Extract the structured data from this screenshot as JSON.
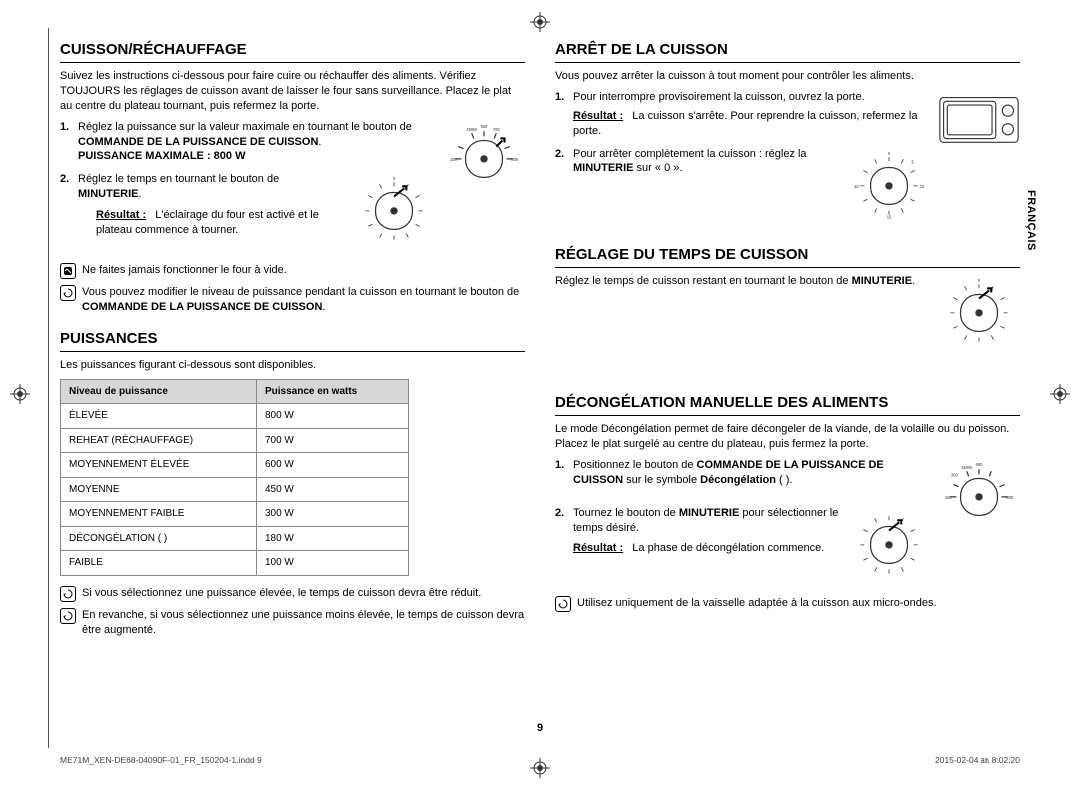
{
  "page_number": "9",
  "side_tab": "FRANÇAIS",
  "footer": {
    "file": "ME71M_XEN-DE68-04090F-01_FR_150204-1.indd   9",
    "timestamp": "2015-02-04   ㏂ 8:02:20"
  },
  "left": {
    "s1": {
      "title": "CUISSON/RÉCHAUFFAGE",
      "intro": "Suivez les instructions ci-dessous pour faire cuire ou réchauffer des aliments. Vérifiez TOUJOURS les réglages de cuisson avant de laisser le four sans surveillance. Placez le plat au centre du plateau tournant, puis refermez la porte.",
      "step1a": "Réglez la puissance sur la valeur maximale en tournant le bouton de ",
      "step1b": "COMMANDE DE LA PUISSANCE DE CUISSON",
      "step1c": ".",
      "step1d": "PUISSANCE MAXIMALE : 800 W",
      "step2a": "Réglez le temps en tournant le bouton de ",
      "step2b": "MINUTERIE",
      "step2c": ".",
      "result_label": "Résultat :",
      "result_text": "L'éclairage du four est activé et le plateau commence à tourner.",
      "note1": "Ne faites jamais fonctionner le four à vide.",
      "note2a": "Vous pouvez modifier le niveau de puissance pendant la cuisson en tournant le bouton de ",
      "note2b": "COMMANDE DE LA PUISSANCE DE CUISSON",
      "note2c": "."
    },
    "s2": {
      "title": "PUISSANCES",
      "intro": "Les puissances figurant ci-dessous sont disponibles.",
      "col1": "Niveau de puissance",
      "col2": "Puissance en watts",
      "rows": [
        [
          "ÉLEVÉE",
          "800 W"
        ],
        [
          "REHEAT (RÉCHAUFFAGE)",
          "700 W"
        ],
        [
          "MOYENNEMENT ÉLEVÉE",
          "600 W"
        ],
        [
          "MOYENNE",
          "450 W"
        ],
        [
          "MOYENNEMENT FAIBLE",
          "300 W"
        ],
        [
          "DÉCONGÉLATION (    )",
          "180 W"
        ],
        [
          "FAIBLE",
          "100 W"
        ]
      ],
      "note1": "Si vous sélectionnez une puissance élevée, le temps de cuisson devra être réduit.",
      "note2": "En revanche, si vous sélectionnez une puissance moins élevée, le temps de cuisson devra être augmenté."
    }
  },
  "right": {
    "s1": {
      "title": "ARRÊT DE LA CUISSON",
      "intro": "Vous pouvez arrêter la cuisson à tout moment pour contrôler les aliments.",
      "step1": "Pour interrompre provisoirement la cuisson, ouvrez la porte.",
      "result_label": "Résultat :",
      "result_text": "La cuisson s'arrête. Pour reprendre la cuisson, refermez la porte.",
      "step2a": "Pour arrêter complètement la cuisson : réglez la ",
      "step2b": "MINUTERIE",
      "step2c": " sur « 0 »."
    },
    "s2": {
      "title": "RÉGLAGE DU TEMPS DE CUISSON",
      "text_a": "Réglez le temps de cuisson restant en tournant le bouton de ",
      "text_b": "MINUTERIE",
      "text_c": "."
    },
    "s3": {
      "title": "DÉCONGÉLATION MANUELLE DES ALIMENTS",
      "intro": "Le mode Décongélation permet de faire décongeler de la viande, de la volaille ou du poisson. Placez le plat surgelé au centre du plateau, puis fermez la porte.",
      "step1a": "Positionnez le bouton de ",
      "step1b": "COMMANDE DE LA PUISSANCE DE CUISSON",
      "step1c": " sur le symbole ",
      "step1d": "Décongélation",
      "step1e": " (    ).",
      "step2a": "Tournez le bouton de ",
      "step2b": "MINUTERIE",
      "step2c": " pour sélectionner le temps désiré.",
      "result_label": "Résultat :",
      "result_text": "La phase de décongélation commence.",
      "note": "Utilisez uniquement de la vaisselle adaptée à la cuisson aux micro-ondes."
    }
  },
  "dial": {
    "stroke": "#222",
    "bg": "#fff",
    "size": 78
  }
}
